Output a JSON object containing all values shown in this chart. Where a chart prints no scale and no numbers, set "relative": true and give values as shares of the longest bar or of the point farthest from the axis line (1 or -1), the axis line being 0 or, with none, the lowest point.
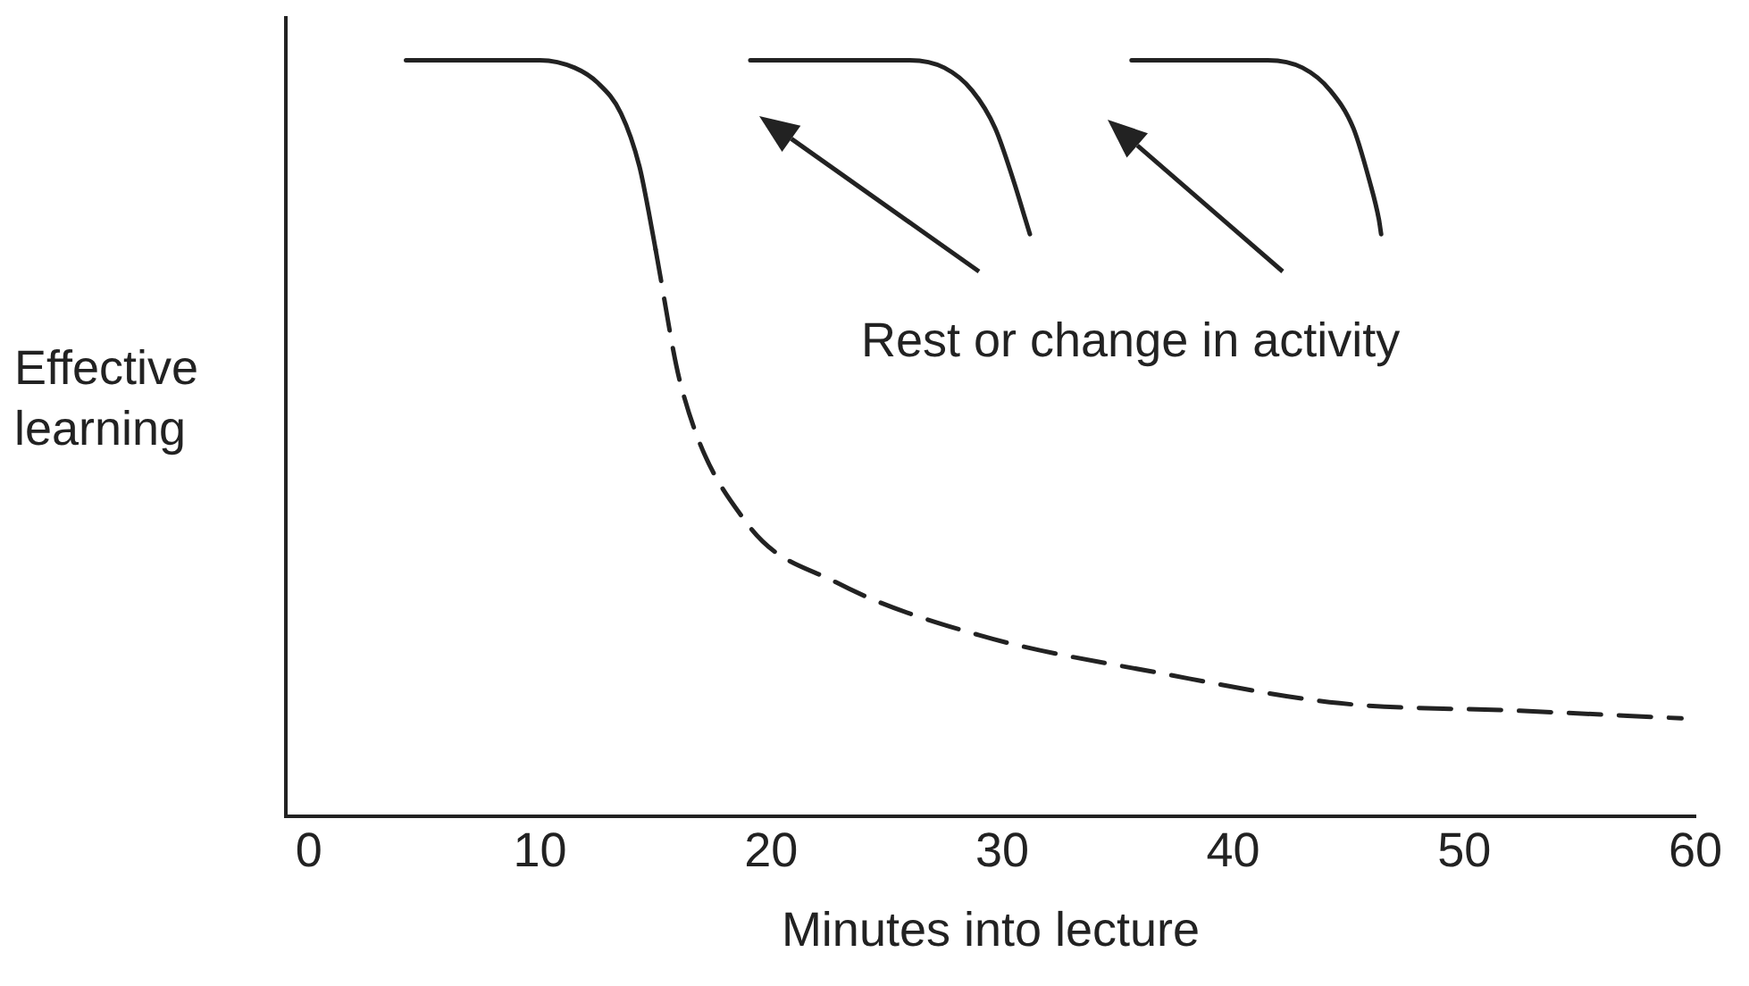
{
  "chart_data": {
    "type": "line",
    "xlabel": "Minutes into lecture",
    "ylabel": "Effective learning",
    "relative": true,
    "xlim": [
      -1,
      60
    ],
    "xticks": [
      0,
      10,
      20,
      30,
      40,
      50,
      60
    ],
    "tick_labels": "x",
    "grid": false,
    "legend": false,
    "marker": "none",
    "annotations": [
      "Rest or change in activity"
    ],
    "series": [
      {
        "color": "#222222",
        "line_style": "solid",
        "x": [
          4.2,
          10,
          11.5,
          12.5,
          13.5,
          14.3,
          14.7,
          15
        ],
        "values": [
          1,
          1,
          0.99,
          0.97,
          0.93,
          0.86,
          0.8,
          0.75
        ]
      },
      {
        "color": "#222222",
        "line_style": "dashed",
        "x": [
          15,
          16.1,
          18.9,
          22.8,
          29,
          36.8,
          44.6,
          52.4,
          59.4
        ],
        "values": [
          0.75,
          0.57,
          0.39,
          0.31,
          0.24,
          0.19,
          0.15,
          0.14,
          0.13
        ]
      },
      {
        "color": "#222222",
        "line_style": "solid",
        "x": [
          19.1,
          26,
          27.5,
          28.7,
          29.7,
          30.5,
          31,
          31.2
        ],
        "values": [
          1,
          1,
          0.99,
          0.96,
          0.91,
          0.84,
          0.79,
          0.77
        ]
      },
      {
        "color": "#222222",
        "line_style": "solid",
        "x": [
          35.6,
          41.5,
          43,
          44.2,
          45.2,
          45.9,
          46.3,
          46.4
        ],
        "values": [
          1,
          1,
          0.99,
          0.96,
          0.91,
          0.84,
          0.79,
          0.77
        ]
      }
    ]
  }
}
